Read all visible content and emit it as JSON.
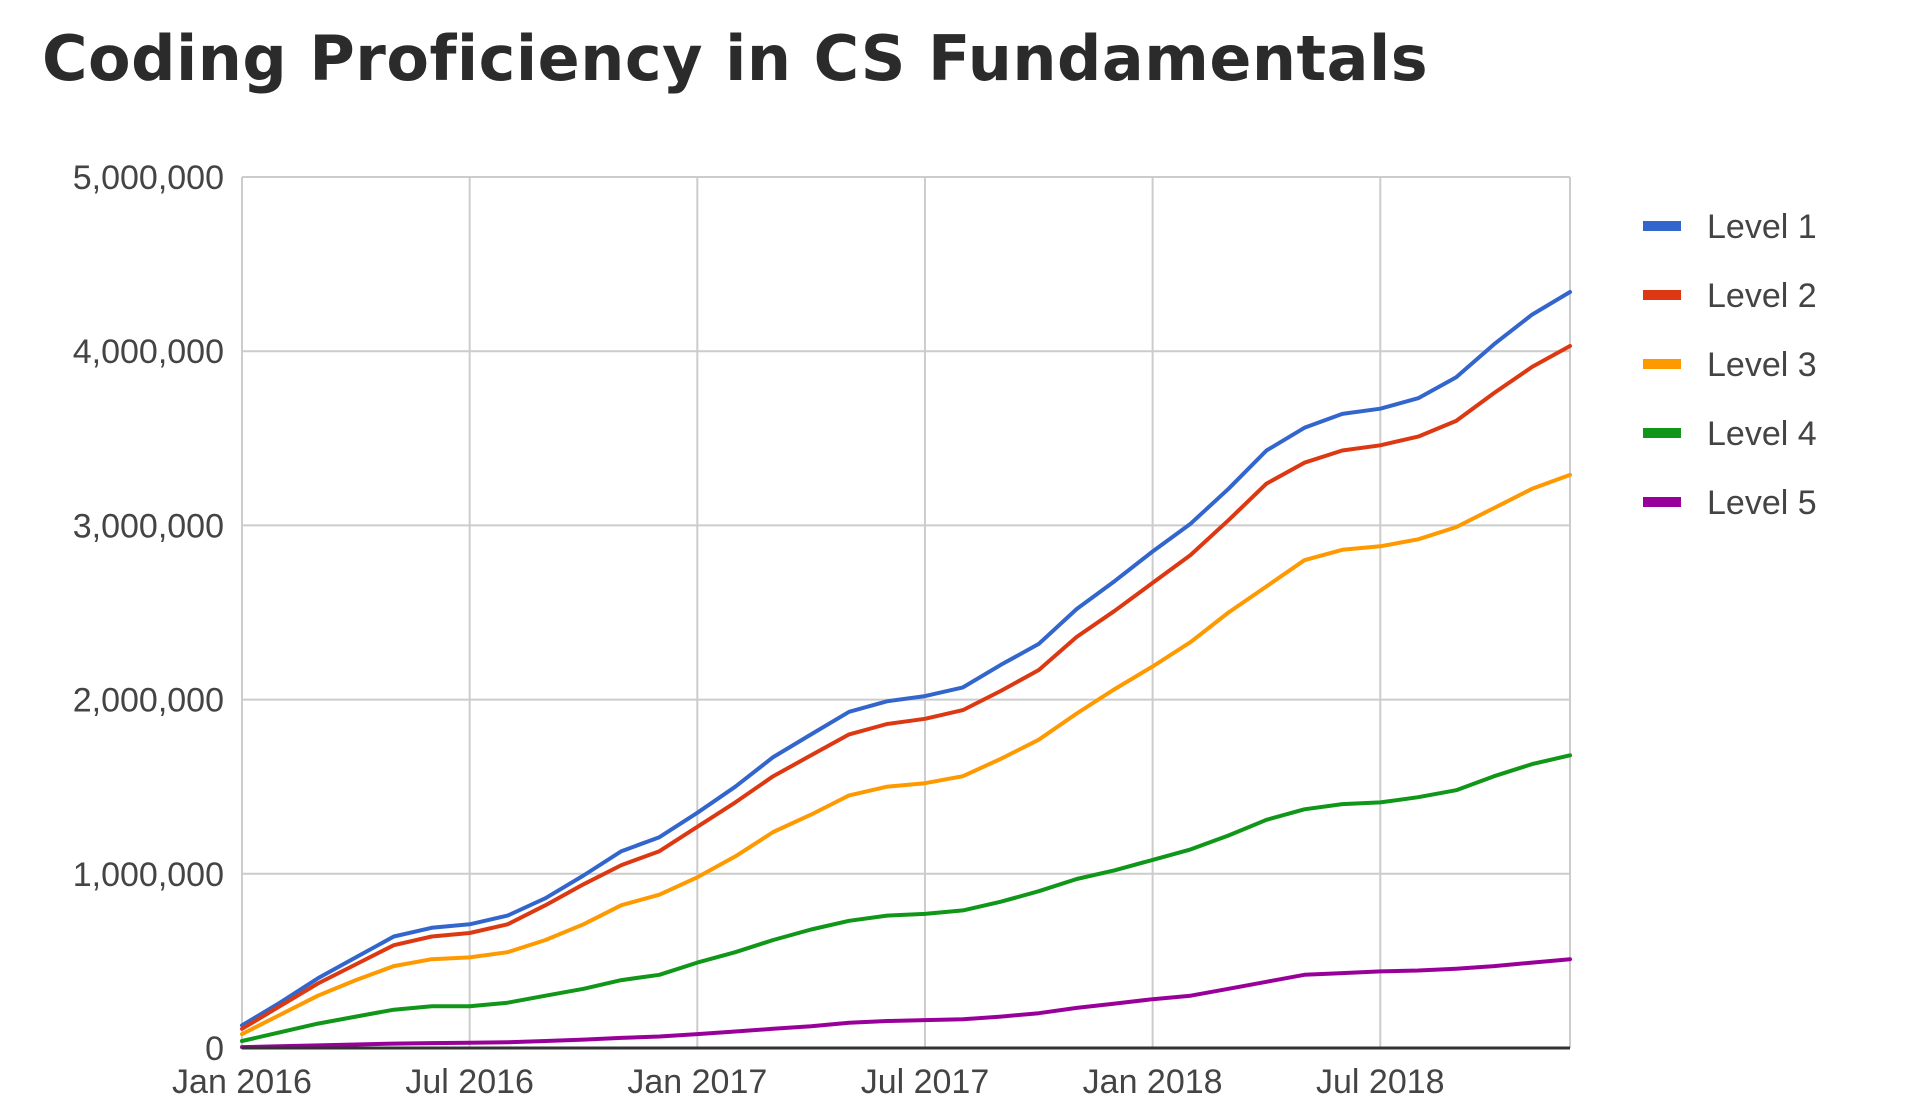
{
  "title": "Coding Proficiency in CS Fundamentals",
  "chart_data": {
    "type": "line",
    "title": "Coding Proficiency in CS Fundamentals",
    "xlabel": "",
    "ylabel": "",
    "x_ticks": [
      "Jan 2016",
      "Jul 2016",
      "Jan 2017",
      "Jul 2017",
      "Jan 2018",
      "Jul 2018"
    ],
    "y_ticks": [
      "0",
      "1,000,000",
      "2,000,000",
      "3,000,000",
      "4,000,000",
      "5,000,000"
    ],
    "ylim": [
      0,
      5000000
    ],
    "xlim": [
      "2016-01",
      "2018-12"
    ],
    "grid": true,
    "legend": "right",
    "x": [
      "2016-01",
      "2016-02",
      "2016-03",
      "2016-04",
      "2016-05",
      "2016-06",
      "2016-07",
      "2016-08",
      "2016-09",
      "2016-10",
      "2016-11",
      "2016-12",
      "2017-01",
      "2017-02",
      "2017-03",
      "2017-04",
      "2017-05",
      "2017-06",
      "2017-07",
      "2017-08",
      "2017-09",
      "2017-10",
      "2017-11",
      "2017-12",
      "2018-01",
      "2018-02",
      "2018-03",
      "2018-04",
      "2018-05",
      "2018-06",
      "2018-07",
      "2018-08",
      "2018-09",
      "2018-10",
      "2018-11",
      "2018-12"
    ],
    "series": [
      {
        "name": "Level 1",
        "color": "#3366cc",
        "values": [
          130000,
          260000,
          400000,
          520000,
          640000,
          690000,
          710000,
          760000,
          860000,
          990000,
          1130000,
          1210000,
          1350000,
          1500000,
          1670000,
          1800000,
          1930000,
          1990000,
          2020000,
          2070000,
          2200000,
          2320000,
          2520000,
          2680000,
          2850000,
          3010000,
          3210000,
          3430000,
          3560000,
          3640000,
          3670000,
          3730000,
          3850000,
          4040000,
          4210000,
          4340000
        ]
      },
      {
        "name": "Level 2",
        "color": "#dc3912",
        "values": [
          110000,
          240000,
          370000,
          480000,
          590000,
          640000,
          660000,
          710000,
          820000,
          940000,
          1050000,
          1130000,
          1270000,
          1410000,
          1560000,
          1680000,
          1800000,
          1860000,
          1890000,
          1940000,
          2050000,
          2170000,
          2360000,
          2510000,
          2670000,
          2830000,
          3030000,
          3240000,
          3360000,
          3430000,
          3460000,
          3510000,
          3600000,
          3760000,
          3910000,
          4030000
        ]
      },
      {
        "name": "Level 3",
        "color": "#ff9900",
        "values": [
          80000,
          190000,
          300000,
          390000,
          470000,
          510000,
          520000,
          550000,
          620000,
          710000,
          820000,
          880000,
          980000,
          1100000,
          1240000,
          1340000,
          1450000,
          1500000,
          1520000,
          1560000,
          1660000,
          1770000,
          1920000,
          2060000,
          2190000,
          2330000,
          2500000,
          2650000,
          2800000,
          2860000,
          2880000,
          2920000,
          2990000,
          3100000,
          3210000,
          3290000
        ]
      },
      {
        "name": "Level 4",
        "color": "#109618",
        "values": [
          40000,
          90000,
          140000,
          180000,
          220000,
          240000,
          240000,
          260000,
          300000,
          340000,
          390000,
          420000,
          490000,
          550000,
          620000,
          680000,
          730000,
          760000,
          770000,
          790000,
          840000,
          900000,
          970000,
          1020000,
          1080000,
          1140000,
          1220000,
          1310000,
          1370000,
          1400000,
          1410000,
          1440000,
          1480000,
          1560000,
          1630000,
          1680000
        ]
      },
      {
        "name": "Level 5",
        "color": "#990099",
        "values": [
          5000,
          10000,
          15000,
          20000,
          25000,
          28000,
          30000,
          33000,
          40000,
          48000,
          58000,
          66000,
          80000,
          95000,
          110000,
          125000,
          145000,
          155000,
          160000,
          165000,
          180000,
          200000,
          230000,
          255000,
          280000,
          300000,
          340000,
          380000,
          420000,
          430000,
          440000,
          445000,
          455000,
          470000,
          490000,
          510000
        ]
      }
    ]
  }
}
